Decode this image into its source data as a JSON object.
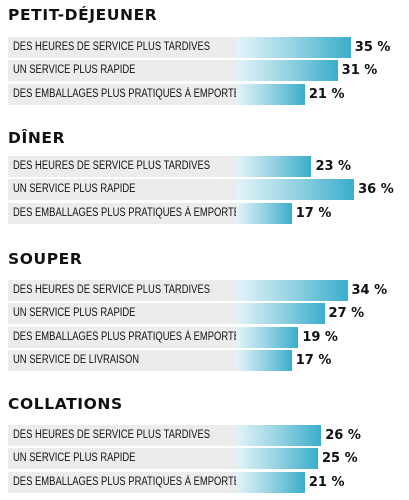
{
  "chart_data": [
    {
      "type": "bar",
      "title": "PETIT-DÉJEUNER",
      "categories": [
        "DES HEURES DE SERVICE PLUS TARDIVES",
        "UN SERVICE PLUS RAPIDE",
        "DES EMBALLAGES PLUS PRATIQUES À EMPORTER"
      ],
      "values": [
        35,
        31,
        21
      ],
      "value_labels": [
        "35 %",
        "31 %",
        "21 %"
      ]
    },
    {
      "type": "bar",
      "title": "DÎNER",
      "categories": [
        "DES HEURES DE SERVICE PLUS TARDIVES",
        "UN SERVICE PLUS RAPIDE",
        "DES EMBALLAGES PLUS PRATIQUES À EMPORTER"
      ],
      "values": [
        23,
        36,
        17
      ],
      "value_labels": [
        "23 %",
        "36 %",
        "17 %"
      ]
    },
    {
      "type": "bar",
      "title": "SOUPER",
      "categories": [
        "DES HEURES DE SERVICE PLUS TARDIVES",
        "UN SERVICE PLUS RAPIDE",
        "DES EMBALLAGES PLUS PRATIQUES À EMPORTER",
        "UN SERVICE DE LIVRAISON"
      ],
      "values": [
        34,
        27,
        19,
        17
      ],
      "value_labels": [
        "34 %",
        "27 %",
        "19 %",
        "17 %"
      ]
    },
    {
      "type": "bar",
      "title": "COLLATIONS",
      "categories": [
        "DES HEURES DE SERVICE PLUS TARDIVES",
        "UN SERVICE PLUS RAPIDE",
        "DES EMBALLAGES PLUS PRATIQUES À EMPORTER"
      ],
      "values": [
        26,
        25,
        21
      ],
      "value_labels": [
        "26 %",
        "25 %",
        "21 %"
      ]
    }
  ],
  "colors": {
    "bar_light": "#e4f4f9",
    "bar_dark": "#3aaecb",
    "label_bg": "#ececec",
    "text": "#111111"
  }
}
